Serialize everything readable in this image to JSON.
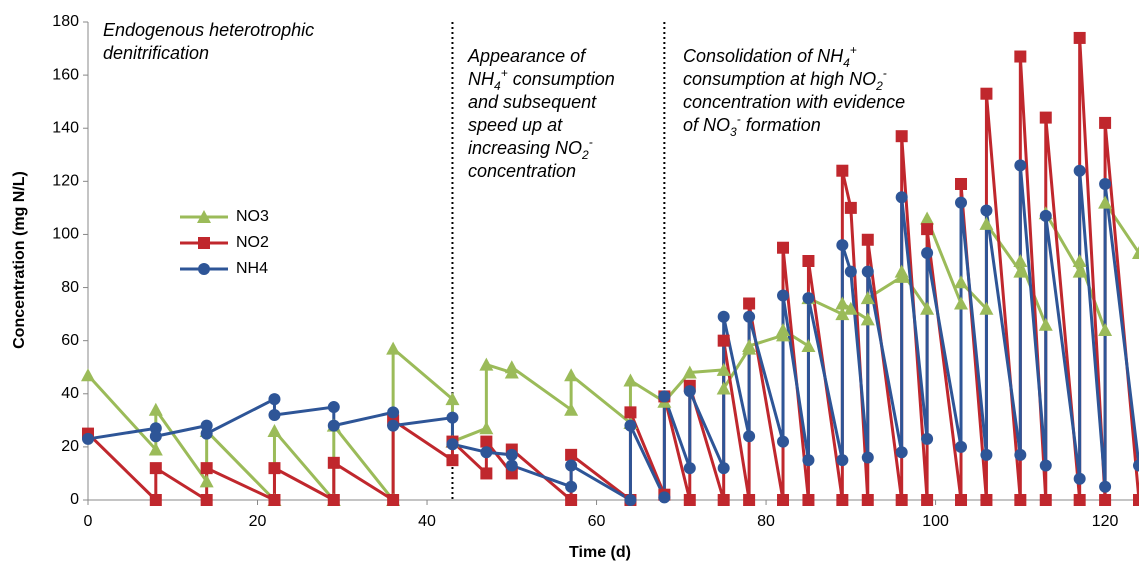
{
  "chart_data": {
    "type": "line",
    "x_label": "Time (d)",
    "y_label": "Concentration (mg N/L)",
    "xlim": [
      0,
      124
    ],
    "ylim": [
      0,
      180
    ],
    "xticks": [
      0,
      20,
      40,
      60,
      80,
      100,
      120
    ],
    "yticks": [
      0,
      20,
      40,
      60,
      80,
      100,
      120,
      140,
      160,
      180
    ],
    "grid": false,
    "legend": "upper left",
    "dividers": [
      43,
      68
    ],
    "annotations": [
      {
        "lines": [
          [
            "Endogenous heterotrophic"
          ],
          [
            "denitrification"
          ]
        ]
      },
      {
        "lines": [
          [
            "Appearance of"
          ],
          [
            "NH",
            {
              "sub": "4"
            },
            {
              "sup": "+"
            },
            " consumption"
          ],
          [
            "and subsequent"
          ],
          [
            "speed up at"
          ],
          [
            "increasing NO",
            {
              "sub": "2"
            },
            {
              "sup": "-"
            }
          ],
          [
            "concentration"
          ]
        ]
      },
      {
        "lines": [
          [
            "Consolidation of NH",
            {
              "sub": "4"
            },
            {
              "sup": "+"
            }
          ],
          [
            "consumption at high NO",
            {
              "sub": "2"
            },
            {
              "sup": "-"
            }
          ],
          [
            "concentration with evidence"
          ],
          [
            "of NO",
            {
              "sub": "3"
            },
            {
              "sup": "-"
            },
            " formation"
          ]
        ]
      }
    ],
    "series": [
      {
        "name": "NO3",
        "color": "#9bbb59",
        "marker": "triangle",
        "x": [
          0,
          8,
          8,
          14,
          14,
          22,
          22,
          29,
          29,
          36,
          36,
          43,
          43,
          47,
          47,
          50,
          50,
          57,
          57,
          64,
          64,
          68,
          71,
          75,
          75,
          78,
          78,
          82,
          82,
          85,
          85,
          89,
          89,
          90,
          92,
          92,
          96,
          96,
          99,
          99,
          103,
          103,
          106,
          106,
          110,
          110,
          113,
          113,
          117,
          117,
          120,
          120,
          124
        ],
        "values": [
          47,
          19,
          34,
          7,
          26,
          0,
          26,
          0,
          28,
          0,
          57,
          38,
          22,
          27,
          51,
          48,
          50,
          34,
          47,
          29,
          45,
          37,
          48,
          49,
          42,
          57,
          58,
          62,
          64,
          58,
          76,
          70,
          74,
          72,
          68,
          76,
          84,
          86,
          72,
          106,
          74,
          82,
          72,
          104,
          86,
          90,
          66,
          108,
          86,
          90,
          64,
          112,
          93
        ]
      },
      {
        "name": "NO2",
        "color": "#c0272d",
        "marker": "square",
        "x": [
          0,
          8,
          8,
          14,
          14,
          22,
          22,
          29,
          29,
          36,
          36,
          43,
          43,
          47,
          47,
          50,
          50,
          57,
          57,
          64,
          64,
          68,
          68,
          71,
          71,
          75,
          75,
          78,
          78,
          82,
          82,
          85,
          85,
          89,
          89,
          90,
          92,
          92,
          96,
          96,
          99,
          99,
          103,
          103,
          106,
          106,
          110,
          110,
          113,
          113,
          117,
          117,
          120,
          120,
          124
        ],
        "values": [
          25,
          0,
          12,
          0,
          12,
          0,
          12,
          0,
          14,
          0,
          30,
          15,
          22,
          10,
          22,
          10,
          19,
          0,
          17,
          0,
          33,
          2,
          39,
          0,
          43,
          0,
          60,
          0,
          74,
          0,
          95,
          0,
          90,
          0,
          124,
          110,
          0,
          98,
          0,
          137,
          0,
          102,
          0,
          119,
          0,
          153,
          0,
          167,
          0,
          144,
          0,
          174,
          0,
          142,
          0
        ]
      },
      {
        "name": "NH4",
        "color": "#2e5597",
        "marker": "circle",
        "x": [
          0,
          8,
          8,
          14,
          14,
          22,
          22,
          29,
          29,
          36,
          36,
          43,
          43,
          47,
          50,
          50,
          57,
          57,
          64,
          64,
          68,
          68,
          71,
          71,
          75,
          75,
          78,
          78,
          82,
          82,
          85,
          85,
          89,
          89,
          90,
          92,
          92,
          96,
          96,
          99,
          99,
          103,
          103,
          106,
          106,
          110,
          110,
          113,
          113,
          117,
          117,
          120,
          120,
          124
        ],
        "values": [
          23,
          27,
          24,
          28,
          25,
          38,
          32,
          35,
          28,
          33,
          28,
          31,
          21,
          18,
          17,
          13,
          5,
          13,
          0,
          28,
          1,
          39,
          12,
          41,
          12,
          69,
          24,
          69,
          22,
          77,
          15,
          76,
          15,
          96,
          86,
          16,
          86,
          18,
          114,
          23,
          93,
          20,
          112,
          17,
          109,
          17,
          126,
          13,
          107,
          8,
          124,
          5,
          119,
          13
        ]
      }
    ]
  }
}
